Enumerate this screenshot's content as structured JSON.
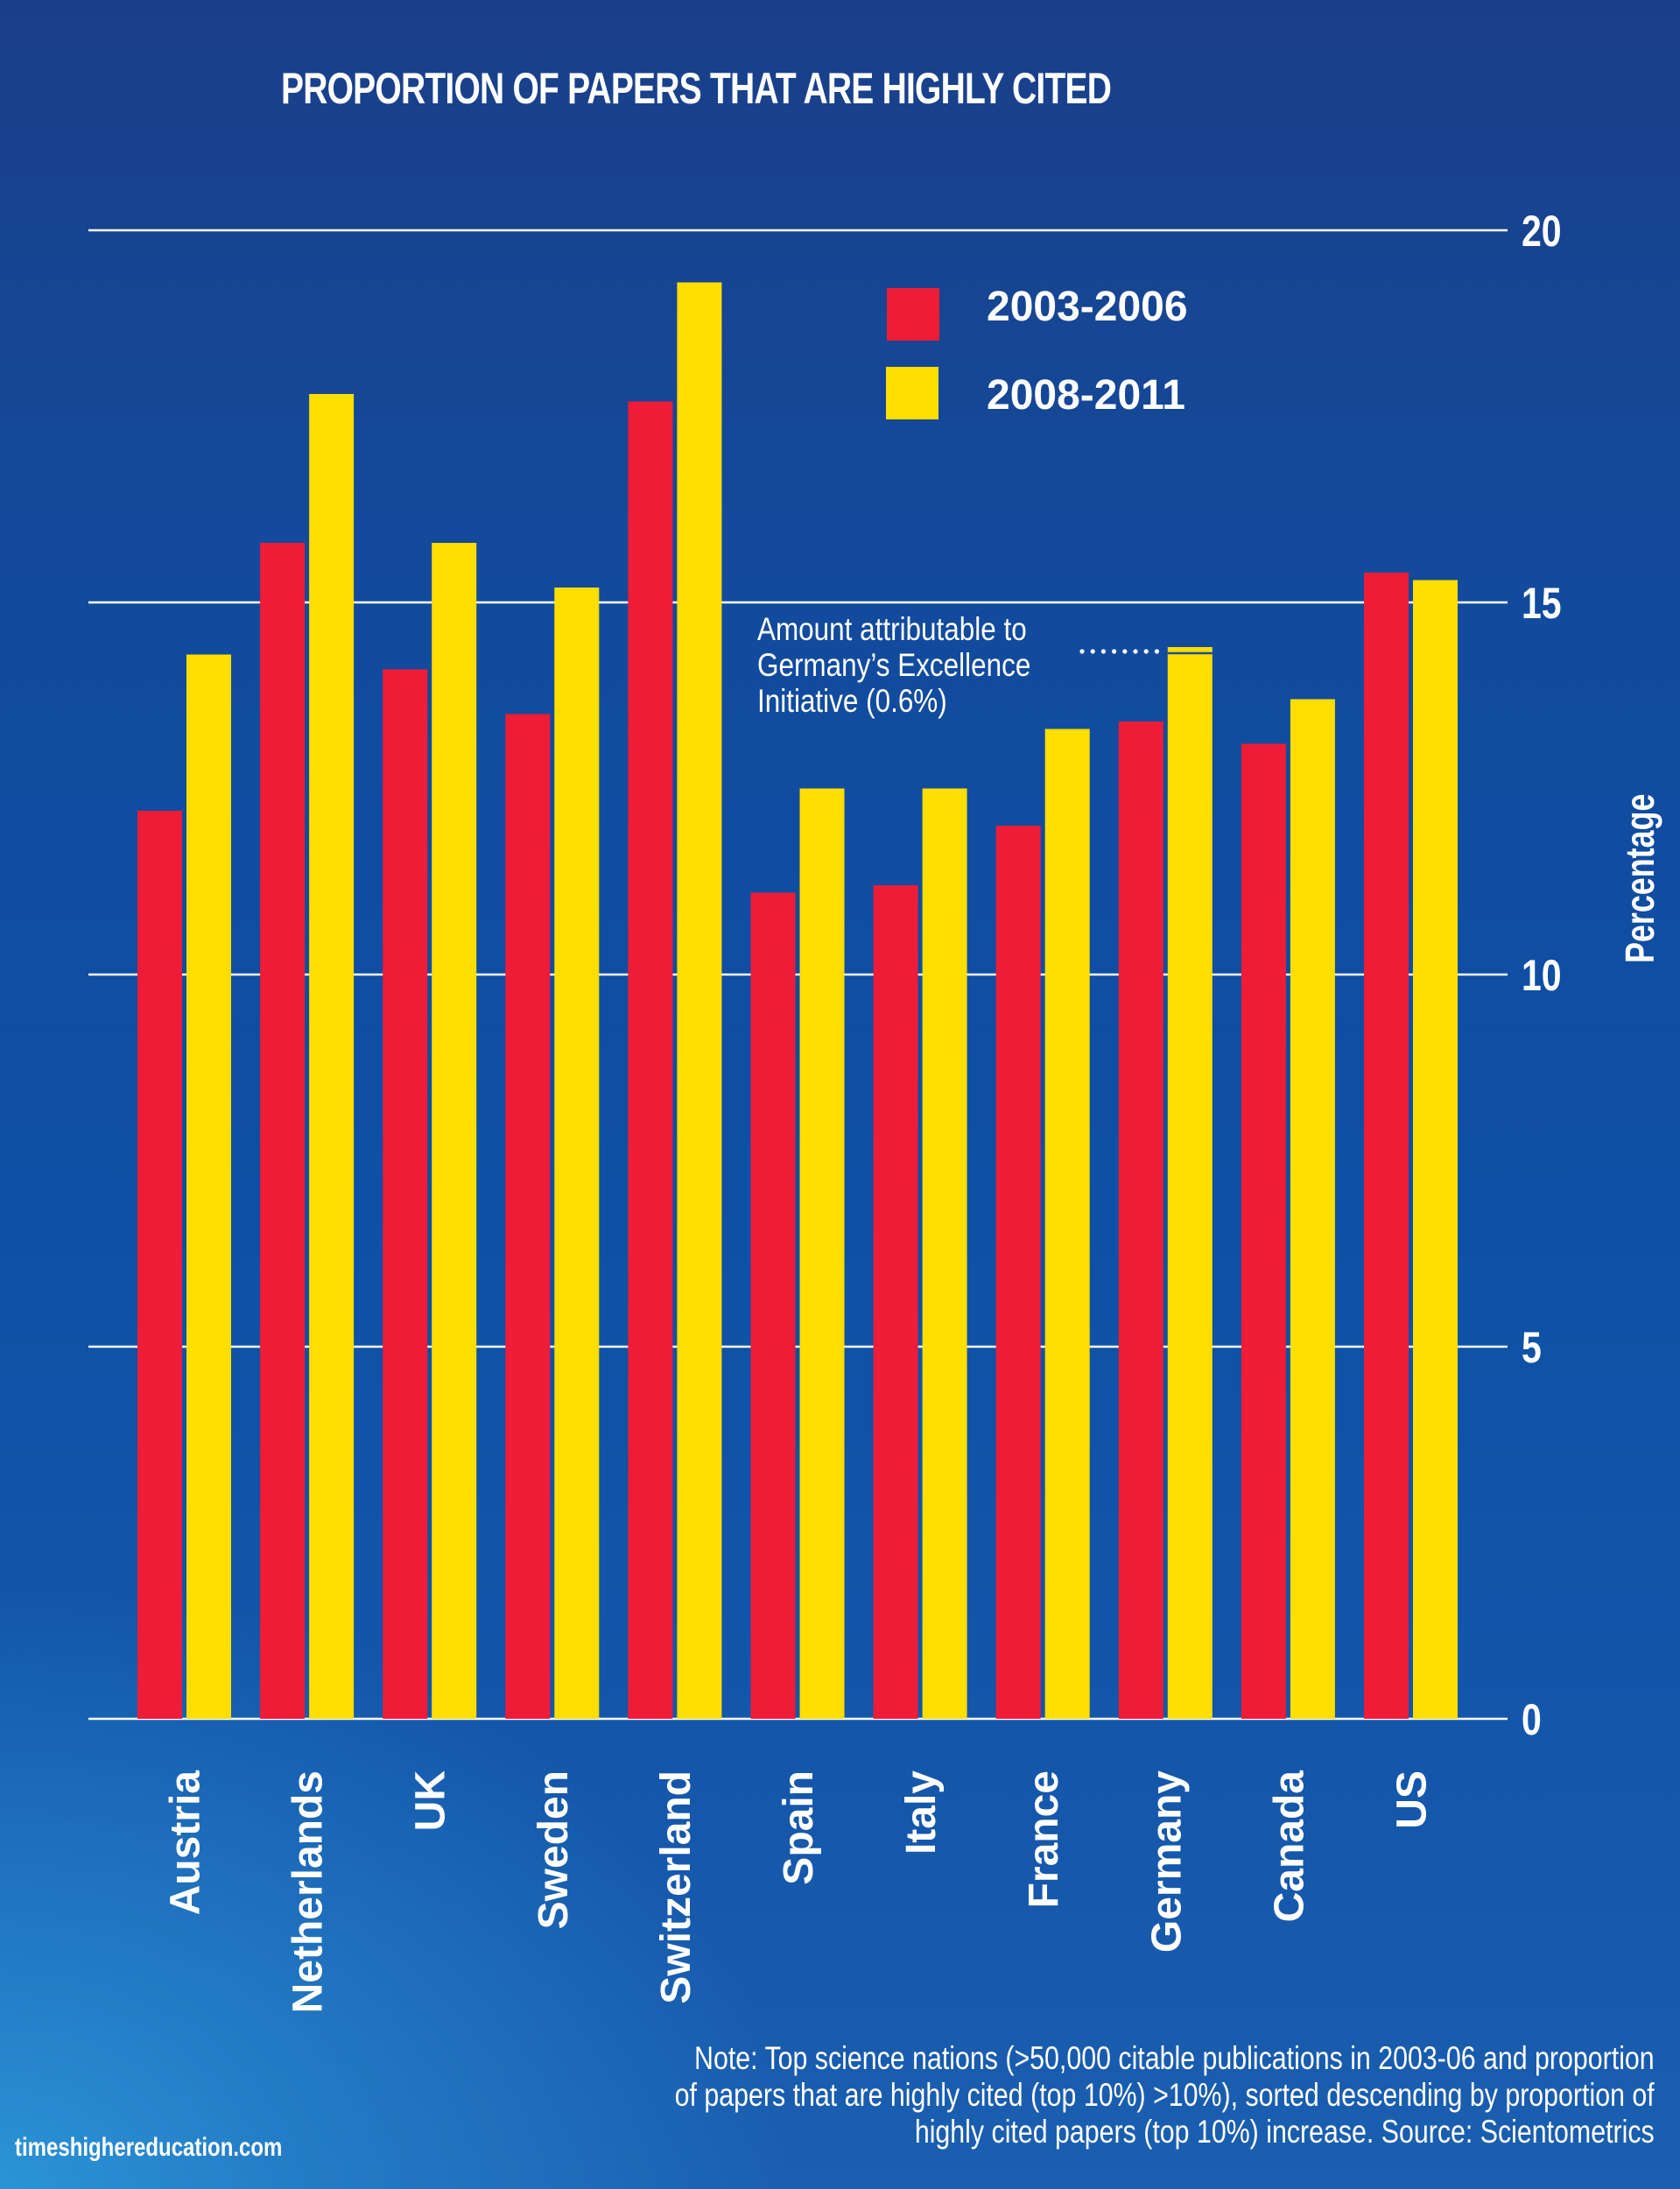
{
  "chart_data": {
    "type": "bar",
    "title": "PROPORTION OF PAPERS THAT ARE HIGHLY CITED",
    "xlabel": "",
    "ylabel": "Percentage",
    "ylim": [
      0,
      20
    ],
    "yticks": [
      0,
      5,
      10,
      15,
      20
    ],
    "grid": true,
    "legend_position": "top-right",
    "categories": [
      "Austria",
      "Netherlands",
      "UK",
      "Sweden",
      "Switzerland",
      "Spain",
      "Italy",
      "France",
      "Germany",
      "Canada",
      "US"
    ],
    "series": [
      {
        "name": "2003-2006",
        "color": "#ee1c36",
        "values": [
          12.2,
          15.8,
          14.1,
          13.5,
          17.7,
          11.1,
          11.2,
          12.0,
          13.4,
          13.1,
          15.4
        ]
      },
      {
        "name": "2008-2011",
        "color": "#ffde00",
        "values": [
          14.3,
          17.8,
          15.8,
          15.2,
          19.3,
          12.5,
          12.5,
          13.3,
          14.4,
          13.7,
          15.3
        ]
      }
    ],
    "annotations": [
      {
        "category": "Germany",
        "series": "2008-2011",
        "text_lines": [
          "Amount attributable to",
          "Germany’s Excellence",
          "Initiative (0.6%)"
        ],
        "value": 0.6
      }
    ]
  },
  "note": {
    "lines": [
      "Note: Top science nations (>50,000 citable publications in 2003-06 and proportion",
      "of papers that are highly cited (top 10%) >10%), sorted descending by proportion of",
      "highly cited papers (top 10%) increase. Source: Scientometrics"
    ]
  },
  "footer": {
    "site": "timeshighereducation.com"
  },
  "colors": {
    "gridline": "#ffffff",
    "text": "#ffffff"
  }
}
